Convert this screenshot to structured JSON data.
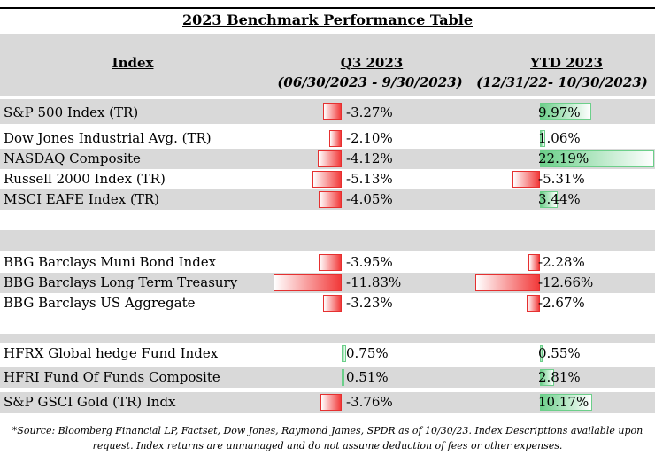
{
  "table": {
    "title": "2023 Benchmark Performance Table",
    "col_index": "Index",
    "col_q3": "Q3 2023",
    "col_q3_range": "(06/30/2023 - 9/30/2023)",
    "col_ytd": "YTD 2023",
    "col_ytd_range": "(12/31/22- 10/30/2023)",
    "rows": [
      {
        "label": "S&P 500 Index (TR)",
        "q3": "-3.27%",
        "q3_value": -3.27,
        "ytd": "9.97%",
        "ytd_value": 9.97
      },
      {
        "label": "Dow Jones Industrial Avg. (TR)",
        "q3": "-2.10%",
        "q3_value": -2.1,
        "ytd": "1.06%",
        "ytd_value": 1.06
      },
      {
        "label": "NASDAQ Composite",
        "q3": "-4.12%",
        "q3_value": -4.12,
        "ytd": "22.19%",
        "ytd_value": 22.19
      },
      {
        "label": "Russell 2000 Index (TR)",
        "q3": "-5.13%",
        "q3_value": -5.13,
        "ytd": "-5.31%",
        "ytd_value": -5.31
      },
      {
        "label": "MSCI EAFE Index (TR)",
        "q3": "-4.05%",
        "q3_value": -4.05,
        "ytd": "3.44%",
        "ytd_value": 3.44
      },
      {
        "label": "BBG Barclays Muni Bond Index",
        "q3": "-3.95%",
        "q3_value": -3.95,
        "ytd": "-2.28%",
        "ytd_value": -2.28
      },
      {
        "label": "BBG Barclays Long Term Treasury",
        "q3": "-11.83%",
        "q3_value": -11.83,
        "ytd": "-12.66%",
        "ytd_value": -12.66
      },
      {
        "label": "BBG Barclays US Aggregate",
        "q3": "-3.23%",
        "q3_value": -3.23,
        "ytd": "-2.67%",
        "ytd_value": -2.67
      },
      {
        "label": "HFRX Global hedge Fund Index",
        "q3": "0.75%",
        "q3_value": 0.75,
        "ytd": "0.55%",
        "ytd_value": 0.55
      },
      {
        "label": "HFRI Fund Of Funds Composite",
        "q3": "0.51%",
        "q3_value": 0.51,
        "ytd": "2.81%",
        "ytd_value": 2.81
      },
      {
        "label": "S&P GSCI Gold (TR) Indx",
        "q3": "-3.76%",
        "q3_value": -3.76,
        "ytd": "10.17%",
        "ytd_value": 10.17
      }
    ]
  },
  "colors": {
    "negative": "#f23a3a",
    "positive": "#6ccf8a",
    "band": "#d9d9d9"
  },
  "footnote": "*Source: Bloomberg Financial LP, Factset, Dow Jones, Raymond James, SPDR  as of 10/30/23. Index Descriptions available upon request. Index returns are unmanaged and do not assume deduction of fees or other expenses."
}
